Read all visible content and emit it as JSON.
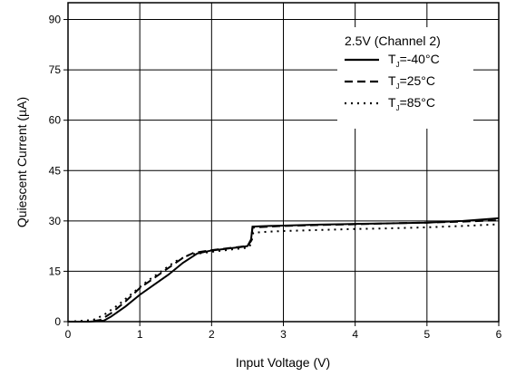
{
  "chart_data": {
    "type": "line",
    "title": "",
    "xlabel": "Input Voltage (V)",
    "ylabel": "Quiescent Current (µA)",
    "xlim": [
      0,
      6
    ],
    "ylim": [
      0,
      95
    ],
    "x_ticks": [
      0,
      1,
      2,
      3,
      4,
      5,
      6
    ],
    "y_ticks": [
      0,
      15,
      30,
      45,
      60,
      75,
      90
    ],
    "grid": true,
    "legend_title": "2.5V (Channel 2)",
    "legend_position": "top-right",
    "series": [
      {
        "name": "TJ=-40°C",
        "label_main": "T",
        "label_sub": "J",
        "label_rest": "=-40°C",
        "style": "solid",
        "color": "#000000",
        "points": [
          [
            0,
            0
          ],
          [
            0.3,
            0
          ],
          [
            0.5,
            0.3
          ],
          [
            0.6,
            1.5
          ],
          [
            0.8,
            4.5
          ],
          [
            1.0,
            8
          ],
          [
            1.2,
            11
          ],
          [
            1.4,
            14
          ],
          [
            1.6,
            17.5
          ],
          [
            1.8,
            20.3
          ],
          [
            2.0,
            21.2
          ],
          [
            2.2,
            21.7
          ],
          [
            2.4,
            22.2
          ],
          [
            2.5,
            22.5
          ],
          [
            2.55,
            24.5
          ],
          [
            2.57,
            28.3
          ],
          [
            2.8,
            28.5
          ],
          [
            3.0,
            28.6
          ],
          [
            3.5,
            28.9
          ],
          [
            4.0,
            29.1
          ],
          [
            4.5,
            29.3
          ],
          [
            5.0,
            29.5
          ],
          [
            5.5,
            30
          ],
          [
            6.0,
            30.8
          ]
        ]
      },
      {
        "name": "TJ=25°C",
        "label_main": "T",
        "label_sub": "J",
        "label_rest": "=25°C",
        "style": "dashed",
        "color": "#000000",
        "points": [
          [
            0,
            0
          ],
          [
            0.3,
            0
          ],
          [
            0.45,
            0.5
          ],
          [
            0.6,
            2.5
          ],
          [
            0.8,
            6
          ],
          [
            1.0,
            10
          ],
          [
            1.2,
            13
          ],
          [
            1.4,
            16
          ],
          [
            1.6,
            19
          ],
          [
            1.75,
            20.5
          ],
          [
            2.0,
            21.3
          ],
          [
            2.2,
            21.8
          ],
          [
            2.4,
            22.3
          ],
          [
            2.5,
            22.6
          ],
          [
            2.55,
            24
          ],
          [
            2.57,
            28
          ],
          [
            2.8,
            28.3
          ],
          [
            3.0,
            28.5
          ],
          [
            3.5,
            28.8
          ],
          [
            4.0,
            29
          ],
          [
            4.5,
            29.3
          ],
          [
            5.0,
            29.5
          ],
          [
            5.5,
            29.8
          ],
          [
            6.0,
            30.2
          ]
        ]
      },
      {
        "name": "TJ=85°C",
        "label_main": "T",
        "label_sub": "J",
        "label_rest": "=85°C",
        "style": "dotted",
        "color": "#000000",
        "points": [
          [
            0,
            0
          ],
          [
            0.15,
            0.2
          ],
          [
            0.35,
            0.5
          ],
          [
            0.5,
            2
          ],
          [
            0.7,
            5
          ],
          [
            0.9,
            8.5
          ],
          [
            1.1,
            12
          ],
          [
            1.3,
            15
          ],
          [
            1.5,
            18
          ],
          [
            1.7,
            20
          ],
          [
            2.0,
            20.8
          ],
          [
            2.2,
            21.3
          ],
          [
            2.4,
            21.8
          ],
          [
            2.5,
            22
          ],
          [
            2.55,
            23
          ],
          [
            2.58,
            26.5
          ],
          [
            2.8,
            26.8
          ],
          [
            3.0,
            27
          ],
          [
            3.5,
            27.3
          ],
          [
            4.0,
            27.6
          ],
          [
            4.5,
            27.8
          ],
          [
            5.0,
            28.1
          ],
          [
            5.5,
            28.5
          ],
          [
            6.0,
            29
          ]
        ]
      }
    ]
  }
}
